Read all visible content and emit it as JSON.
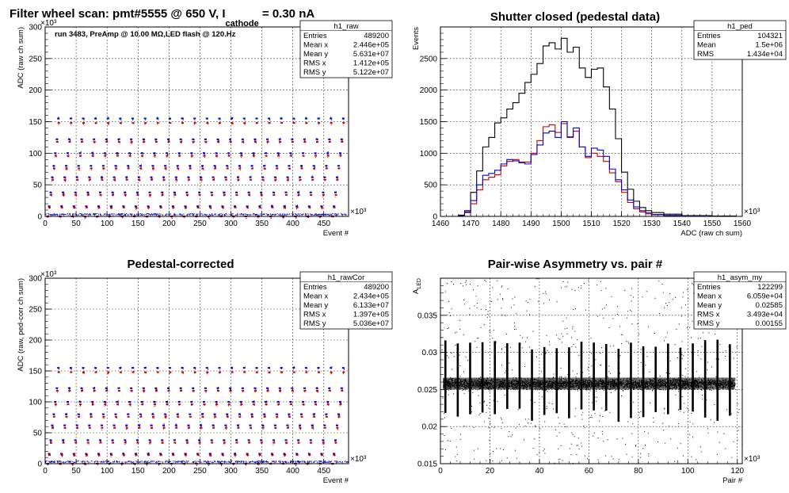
{
  "chart_data": [
    {
      "id": "h1_raw",
      "type": "scatter",
      "title_parts": {
        "main": "Filter wheel scan: pmt#5555 @   650 V, I",
        "sub": "cathode",
        "rest": " = 0.30 nA"
      },
      "annotation": "run 3483, PreAmp @ 10.00 MΩ,LED flash @  120.Hz",
      "xlabel": "Event #",
      "ylabel": "ADC (raw ch sum)",
      "x_exponent": "×10³",
      "y_exponent": "×10³",
      "xlim": [
        0,
        490
      ],
      "ylim": [
        0,
        300
      ],
      "xticks": [
        0,
        50,
        100,
        150,
        200,
        250,
        300,
        350,
        400,
        450
      ],
      "yticks": [
        0,
        50,
        100,
        150,
        200,
        250,
        300
      ],
      "grid": true,
      "stats": {
        "name": "h1_raw",
        "rows": [
          [
            "Entries",
            "489200"
          ],
          [
            "Mean x",
            "2.446e+05"
          ],
          [
            "Mean y",
            "5.631e+07"
          ],
          [
            "RMS x",
            "1.412e+05"
          ],
          [
            "RMS y",
            "5.122e+07"
          ]
        ]
      },
      "series": [
        {
          "color": "#0000cc",
          "levels": [
            0,
            16,
            38,
            62,
            80,
            100,
            122,
            155
          ]
        },
        {
          "color": "#cc0000",
          "levels": [
            0,
            14,
            34,
            58,
            76,
            96,
            118,
            148
          ]
        }
      ],
      "cycle_starts": [
        2,
        22,
        42,
        62,
        82,
        102,
        122,
        142,
        162,
        182,
        202,
        222,
        242,
        262,
        282,
        302,
        322,
        342,
        362,
        382,
        402,
        422,
        442,
        462
      ]
    },
    {
      "id": "h1_ped",
      "type": "line",
      "title": "Shutter closed (pedestal data)",
      "xlabel": "ADC (raw ch sum)",
      "ylabel": "Events",
      "x_exponent": "×10³",
      "xlim": [
        1460,
        1560
      ],
      "ylim": [
        0,
        3000
      ],
      "xticks": [
        1460,
        1470,
        1480,
        1490,
        1500,
        1510,
        1520,
        1530,
        1540,
        1550,
        1560
      ],
      "yticks": [
        0,
        500,
        1000,
        1500,
        2000,
        2500
      ],
      "grid": true,
      "stats": {
        "name": "h1_ped",
        "rows": [
          [
            "Entries",
            "104321"
          ],
          [
            "Mean",
            "1.5e+06"
          ],
          [
            "RMS",
            "1.434e+04"
          ]
        ]
      },
      "series": [
        {
          "color": "#000000",
          "x": [
            1460,
            1466,
            1468,
            1470,
            1472,
            1474,
            1476,
            1478,
            1480,
            1482,
            1484,
            1486,
            1488,
            1490,
            1492,
            1494,
            1496,
            1498,
            1500,
            1502,
            1504,
            1506,
            1508,
            1510,
            1512,
            1514,
            1516,
            1518,
            1520,
            1522,
            1524,
            1526,
            1528,
            1530,
            1534,
            1540,
            1550,
            1558
          ],
          "y": [
            0,
            20,
            90,
            380,
            720,
            1100,
            1250,
            1480,
            1560,
            1700,
            1800,
            1950,
            2120,
            2250,
            2420,
            2700,
            2750,
            2650,
            2820,
            2600,
            2680,
            2350,
            2200,
            2330,
            2350,
            2050,
            1700,
            1230,
            700,
            430,
            240,
            140,
            90,
            60,
            35,
            12,
            5,
            0
          ]
        },
        {
          "color": "#cc0000",
          "x": [
            1460,
            1466,
            1468,
            1470,
            1472,
            1474,
            1476,
            1478,
            1480,
            1482,
            1484,
            1486,
            1488,
            1490,
            1492,
            1494,
            1496,
            1498,
            1500,
            1502,
            1504,
            1506,
            1508,
            1510,
            1512,
            1514,
            1516,
            1518,
            1520,
            1522,
            1524,
            1526,
            1528,
            1530,
            1534,
            1540,
            1550
          ],
          "y": [
            0,
            10,
            60,
            200,
            420,
            580,
            620,
            660,
            800,
            870,
            900,
            860,
            860,
            1000,
            1200,
            1420,
            1450,
            1330,
            1470,
            1250,
            1350,
            1100,
            930,
            1000,
            950,
            870,
            690,
            550,
            380,
            220,
            120,
            70,
            40,
            25,
            12,
            5,
            0
          ]
        },
        {
          "color": "#0000cc",
          "x": [
            1460,
            1466,
            1468,
            1470,
            1472,
            1474,
            1476,
            1478,
            1480,
            1482,
            1484,
            1486,
            1488,
            1490,
            1492,
            1494,
            1496,
            1498,
            1500,
            1502,
            1504,
            1506,
            1508,
            1510,
            1512,
            1514,
            1516,
            1518,
            1520,
            1522,
            1524,
            1526,
            1528,
            1530,
            1534,
            1540,
            1550
          ],
          "y": [
            0,
            10,
            70,
            250,
            500,
            650,
            680,
            730,
            830,
            900,
            880,
            850,
            830,
            980,
            1130,
            1320,
            1350,
            1250,
            1500,
            1260,
            1400,
            1100,
            950,
            1080,
            1050,
            950,
            750,
            580,
            420,
            260,
            150,
            90,
            55,
            30,
            15,
            5,
            0
          ]
        }
      ]
    },
    {
      "id": "h1_rawCor",
      "type": "scatter",
      "title": "Pedestal-corrected",
      "xlabel": "Event #",
      "ylabel": "ADC (raw, ped-corr ch sum)",
      "x_exponent": "×10³",
      "y_exponent": "×10³",
      "xlim": [
        0,
        490
      ],
      "ylim": [
        0,
        300
      ],
      "xticks": [
        0,
        50,
        100,
        150,
        200,
        250,
        300,
        350,
        400,
        450
      ],
      "yticks": [
        0,
        50,
        100,
        150,
        200,
        250,
        300
      ],
      "grid": true,
      "stats": {
        "name": "h1_rawCor",
        "rows": [
          [
            "Entries",
            "489200"
          ],
          [
            "Mean x",
            "2.434e+05"
          ],
          [
            "Mean y",
            "6.133e+07"
          ],
          [
            "RMS x",
            "1.397e+05"
          ],
          [
            "RMS y",
            "5.036e+07"
          ]
        ]
      },
      "series": [
        {
          "color": "#0000cc",
          "levels": [
            0,
            16,
            38,
            62,
            80,
            100,
            122,
            155
          ]
        },
        {
          "color": "#cc0000",
          "levels": [
            0,
            14,
            34,
            58,
            76,
            96,
            118,
            148
          ]
        }
      ],
      "cycle_starts": [
        2,
        22,
        42,
        62,
        82,
        102,
        122,
        142,
        162,
        182,
        202,
        222,
        242,
        262,
        282,
        302,
        322,
        342,
        362,
        382,
        402,
        422,
        442,
        462
      ]
    },
    {
      "id": "h1_asym_my",
      "type": "scatter",
      "title": "Pair-wise Asymmetry vs. pair #",
      "xlabel": "Pair #",
      "ylabel_main": "A",
      "ylabel_sub": "LED",
      "x_exponent": "×10³",
      "xlim": [
        0,
        122
      ],
      "ylim": [
        0.015,
        0.04
      ],
      "xticks": [
        0,
        20,
        40,
        60,
        80,
        100,
        120
      ],
      "yticks": [
        0.015,
        0.02,
        0.025,
        0.03,
        0.035
      ],
      "grid": true,
      "stats": {
        "name": "h1_asym_my",
        "rows": [
          [
            "Entries",
            "122299"
          ],
          [
            "Mean x",
            "6.059e+04"
          ],
          [
            "Mean y",
            "0.02585"
          ],
          [
            "RMS x",
            "3.493e+04"
          ],
          [
            "RMS y",
            "0.00155"
          ]
        ]
      },
      "band": {
        "center": 0.0258,
        "half_width": 0.0008
      },
      "spike_positions": [
        2,
        7,
        12,
        17,
        22,
        27,
        32,
        37,
        42,
        47,
        52,
        57,
        62,
        67,
        72,
        77,
        82,
        87,
        92,
        97,
        102,
        107,
        112,
        117
      ],
      "spike_range": [
        0.0205,
        0.0318
      ]
    }
  ]
}
